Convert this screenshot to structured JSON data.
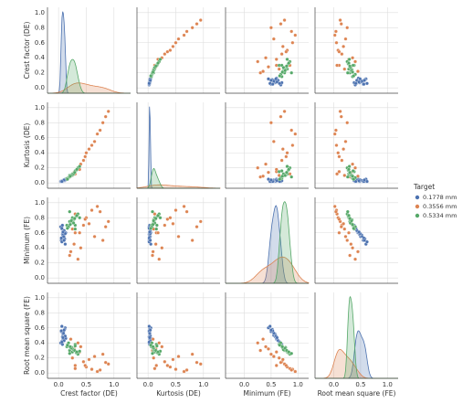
{
  "chart_data": {
    "type": "pairplot",
    "grid": true,
    "legend_position": "right",
    "legend_title": "Target",
    "variables": [
      {
        "label": "Crest factor (DE)",
        "xlim": [
          -0.2,
          1.3
        ],
        "xticks": [
          {
            "value": 0,
            "label": "0.0"
          },
          0.5,
          {
            "value": 1,
            "label": "1.0"
          }
        ],
        "ylim": [
          -0.07,
          1.07
        ],
        "yticks": [
          {
            "value": 0,
            "label": "0.0"
          },
          0.2,
          0.4,
          0.6,
          0.8,
          {
            "value": 1,
            "label": "1.0"
          }
        ]
      },
      {
        "label": "Kurtosis (DE)",
        "xlim": [
          -0.2,
          1.3
        ],
        "xticks": [
          {
            "value": 0,
            "label": "0.0"
          },
          0.5,
          {
            "value": 1,
            "label": "1.0"
          }
        ],
        "ylim": [
          -0.07,
          1.07
        ],
        "yticks": [
          {
            "value": 0,
            "label": "0.0"
          },
          0.2,
          0.4,
          0.6,
          0.8,
          {
            "value": 1,
            "label": "1.0"
          }
        ]
      },
      {
        "label": "Minimum (FE)",
        "xlim": [
          -0.35,
          1.2
        ],
        "xticks": [
          {
            "value": 0,
            "label": "0.0"
          },
          0.5,
          {
            "value": 1,
            "label": "1.0"
          }
        ],
        "ylim": [
          -0.07,
          1.07
        ],
        "yticks": [
          {
            "value": 0,
            "label": "0.0"
          },
          0.2,
          0.4,
          0.6,
          0.8,
          {
            "value": 1,
            "label": "1.0"
          }
        ]
      },
      {
        "label": "Root mean square (FE)",
        "xlim": [
          -0.35,
          1.2
        ],
        "xticks": [
          {
            "value": 0,
            "label": "0.0"
          },
          0.5,
          {
            "value": 1,
            "label": "1.0"
          }
        ],
        "ylim": [
          -0.07,
          1.07
        ],
        "yticks": [
          {
            "value": 0,
            "label": "0.0"
          },
          0.2,
          0.4,
          0.6,
          0.8,
          {
            "value": 1,
            "label": "1.0"
          }
        ]
      }
    ],
    "series": [
      {
        "name": "0.1778 mm",
        "color": "#4c72b0",
        "values": [
          [
            0.05,
            0.08,
            0.1,
            0.06,
            0.12,
            0.07,
            0.09,
            0.11,
            0.04,
            0.08,
            0.13,
            0.06,
            0.1,
            0.09,
            0.07,
            0.05,
            0.12,
            0.08,
            0.1,
            0.06
          ],
          [
            0.02,
            0.03,
            0.04,
            0.03,
            0.05,
            0.02,
            0.04,
            0.03,
            0.02,
            0.03,
            0.05,
            0.02,
            0.04,
            0.03,
            0.03,
            0.02,
            0.04,
            0.03,
            0.04,
            0.02
          ],
          [
            0.5,
            0.6,
            0.55,
            0.65,
            0.45,
            0.58,
            0.62,
            0.52,
            0.68,
            0.57,
            0.6,
            0.48,
            0.63,
            0.55,
            0.7,
            0.53,
            0.59,
            0.61,
            0.5,
            0.66
          ],
          [
            0.55,
            0.45,
            0.5,
            0.42,
            0.6,
            0.48,
            0.44,
            0.58,
            0.4,
            0.52,
            0.46,
            0.62,
            0.43,
            0.53,
            0.38,
            0.56,
            0.49,
            0.47,
            0.57,
            0.41
          ]
        ]
      },
      {
        "name": "0.3556 mm",
        "color": "#dd8452",
        "values": [
          [
            0.2,
            0.3,
            0.45,
            0.6,
            0.8,
            0.9,
            0.35,
            0.5,
            0.25,
            0.7,
            0.4,
            0.55,
            0.65,
            0.3,
            0.85,
            0.22,
            0.48,
            0.38,
            0.75,
            0.28
          ],
          [
            0.08,
            0.15,
            0.3,
            0.5,
            0.8,
            0.95,
            0.2,
            0.4,
            0.1,
            0.65,
            0.25,
            0.45,
            0.55,
            0.12,
            0.88,
            0.09,
            0.35,
            0.18,
            0.7,
            0.14
          ],
          [
            0.3,
            0.6,
            0.7,
            0.9,
            0.5,
            0.75,
            0.25,
            0.8,
            0.65,
            0.95,
            0.4,
            0.72,
            0.55,
            0.85,
            0.68,
            0.35,
            0.78,
            0.6,
            0.88,
            0.45
          ],
          [
            0.3,
            0.1,
            0.15,
            0.05,
            0.25,
            0.12,
            0.4,
            0.08,
            0.2,
            0.02,
            0.35,
            0.18,
            0.22,
            0.06,
            0.14,
            0.45,
            0.1,
            0.28,
            0.04,
            0.32
          ]
        ]
      },
      {
        "name": "0.5334 mm",
        "color": "#55a868",
        "values": [
          [
            0.15,
            0.2,
            0.25,
            0.3,
            0.35,
            0.22,
            0.28,
            0.18,
            0.32,
            0.26,
            0.24,
            0.3,
            0.2,
            0.27,
            0.38,
            0.16,
            0.23,
            0.29,
            0.21,
            0.33
          ],
          [
            0.06,
            0.1,
            0.12,
            0.15,
            0.2,
            0.09,
            0.13,
            0.07,
            0.17,
            0.11,
            0.1,
            0.16,
            0.08,
            0.12,
            0.22,
            0.05,
            0.1,
            0.14,
            0.09,
            0.18
          ],
          [
            0.7,
            0.75,
            0.8,
            0.65,
            0.85,
            0.72,
            0.78,
            0.68,
            0.82,
            0.74,
            0.77,
            0.7,
            0.88,
            0.73,
            0.8,
            0.66,
            0.76,
            0.79,
            0.71,
            0.83
          ],
          [
            0.35,
            0.3,
            0.28,
            0.38,
            0.25,
            0.33,
            0.3,
            0.4,
            0.27,
            0.32,
            0.34,
            0.36,
            0.26,
            0.31,
            0.29,
            0.37,
            0.33,
            0.3,
            0.35,
            0.28
          ]
        ]
      }
    ]
  }
}
